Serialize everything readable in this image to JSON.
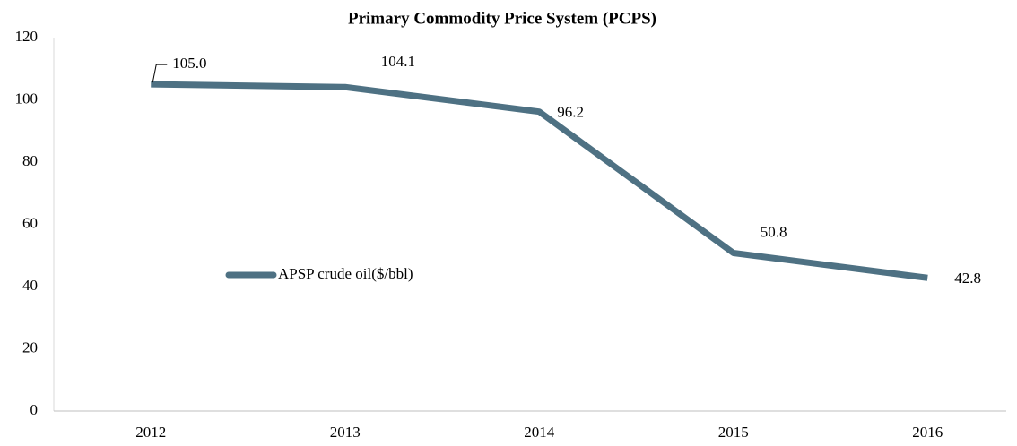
{
  "chart_data": {
    "type": "line",
    "title": "Primary Commodity Price System (PCPS)",
    "categories": [
      "2012",
      "2013",
      "2014",
      "2015",
      "2016"
    ],
    "series": [
      {
        "name": "APSP crude oil($/bbl)",
        "color": "#4e7183",
        "values": [
          105.0,
          104.1,
          96.2,
          50.8,
          42.8
        ],
        "value_labels": [
          "105.0",
          "104.1",
          "96.2",
          "50.8",
          "42.8"
        ]
      }
    ],
    "ylim": [
      0,
      120
    ],
    "yticks": [
      0,
      20,
      40,
      60,
      80,
      100,
      120
    ],
    "grid": false,
    "legend": "center-left"
  }
}
